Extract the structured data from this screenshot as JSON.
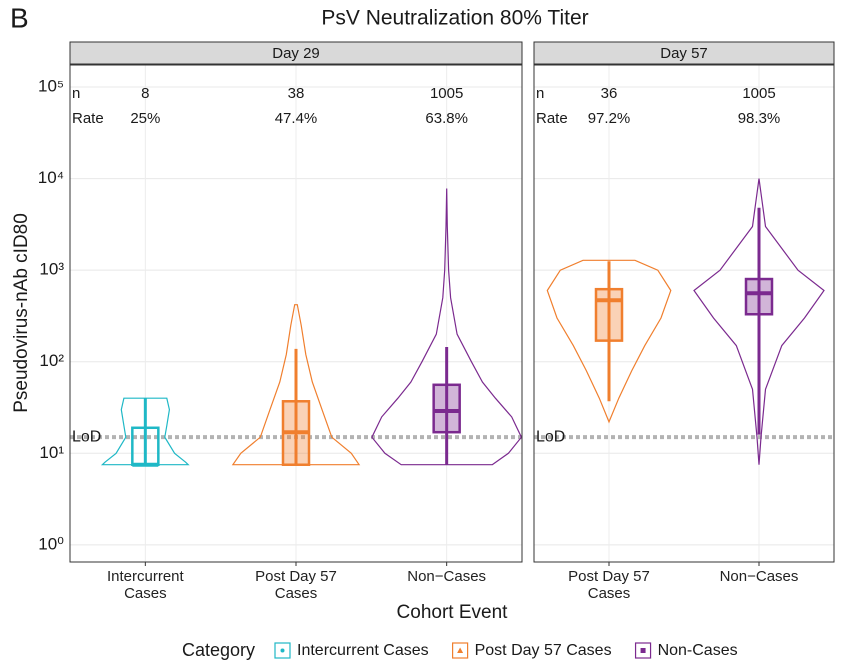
{
  "chart_data": {
    "type": "violin",
    "panel_label": "B",
    "title": "PsV Neutralization 80% Titer",
    "ylabel": "Pseudovirus-nAb cID80",
    "xlabel": "Cohort Event",
    "yscale": "log",
    "ylim": [
      0.65,
      174000
    ],
    "yticks": [
      {
        "value": 1,
        "label": "10⁰"
      },
      {
        "value": 10,
        "label": "10¹"
      },
      {
        "value": 100,
        "label": "10²"
      },
      {
        "value": 1000,
        "label": "10³"
      },
      {
        "value": 10000,
        "label": "10⁴"
      },
      {
        "value": 100000,
        "label": "10⁵"
      }
    ],
    "grid": true,
    "lod": 15,
    "legend": {
      "title": "Category",
      "position": "bottom"
    },
    "series": [
      {
        "name": "Intercurrent Cases",
        "color": "#1fb8c6",
        "marker": "circle"
      },
      {
        "name": "Post Day 57 Cases",
        "color": "#f07f2e",
        "marker": "triangle"
      },
      {
        "name": "Non-Cases",
        "color": "#7b2a8f",
        "marker": "square"
      }
    ],
    "facets": [
      {
        "title": "Day 29",
        "n_label": "n",
        "rate_label": "Rate",
        "lod_label": "LoD",
        "categories": [
          "Intercurrent\nCases",
          "Post Day 57\nCases",
          "Non−Cases"
        ],
        "groups": [
          {
            "series": 0,
            "n": 8,
            "rate": 25,
            "rate_label": "25%",
            "box": {
              "min": 7.5,
              "q1": 7.5,
              "median": 7.5,
              "q3": 19,
              "max": 40
            },
            "violin_y": [
              7.5,
              8,
              10,
              15,
              20,
              30,
              40
            ],
            "violin_width": [
              0.66,
              0.62,
              0.45,
              0.3,
              0.33,
              0.37,
              0.33
            ]
          },
          {
            "series": 1,
            "n": 38,
            "rate": 47.4,
            "rate_label": "47.4%",
            "box": {
              "min": 7.5,
              "q1": 7.5,
              "median": 17,
              "q3": 37,
              "max": 138
            },
            "violin_y": [
              7.5,
              10,
              15,
              30,
              60,
              120,
              250,
              420
            ],
            "violin_width": [
              0.97,
              0.85,
              0.55,
              0.4,
              0.25,
              0.15,
              0.08,
              0.02
            ]
          },
          {
            "series": 2,
            "n": 1005,
            "rate": 63.8,
            "rate_label": "63.8%",
            "box": {
              "min": 7.5,
              "q1": 17,
              "median": 29,
              "q3": 56,
              "max": 145
            },
            "violin_y": [
              7.5,
              10,
              15,
              25,
              40,
              60,
              100,
              200,
              500,
              1000,
              3000,
              7800
            ],
            "violin_width": [
              0.7,
              0.95,
              1.15,
              1,
              0.75,
              0.55,
              0.38,
              0.16,
              0.06,
              0.03,
              0.01,
              0
            ]
          }
        ]
      },
      {
        "title": "Day 57",
        "n_label": "n",
        "rate_label": "Rate",
        "lod_label": "LoD",
        "categories": [
          "Post Day 57\nCases",
          "Non−Cases"
        ],
        "groups": [
          {
            "series": 1,
            "n": 36,
            "rate": 97.2,
            "rate_label": "97.2%",
            "box": {
              "min": 37,
              "q1": 170,
              "median": 470,
              "q3": 620,
              "max": 1250
            },
            "violin_y": [
              22,
              40,
              80,
              150,
              300,
              600,
              1000,
              1280
            ],
            "violin_width": [
              0,
              0.15,
              0.35,
              0.55,
              0.8,
              0.95,
              0.75,
              0.4
            ]
          },
          {
            "series": 2,
            "n": 1005,
            "rate": 98.3,
            "rate_label": "98.3%",
            "box": {
              "min": 16,
              "q1": 330,
              "median": 560,
              "q3": 800,
              "max": 4800
            },
            "violin_y": [
              7.5,
              15,
              50,
              150,
              300,
              600,
              1000,
              3000,
              10000
            ],
            "violin_width": [
              0,
              0.03,
              0.1,
              0.35,
              0.7,
              1,
              0.6,
              0.1,
              0
            ]
          }
        ]
      }
    ]
  }
}
